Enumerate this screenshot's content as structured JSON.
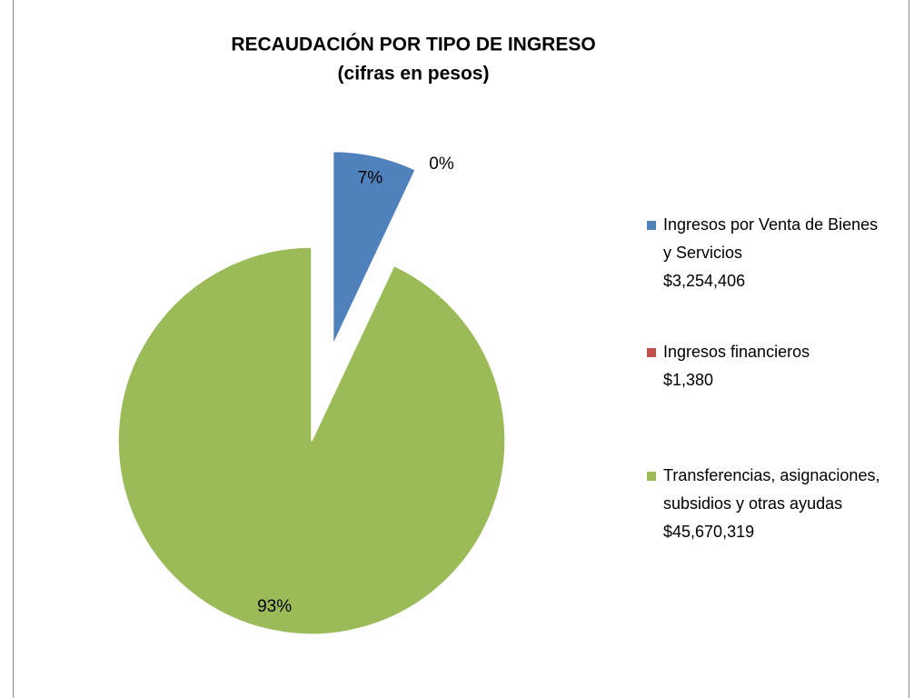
{
  "chart_data": {
    "type": "pie",
    "title": "RECAUDACIÓN POR TIPO DE INGRESO",
    "subtitle": "(cifras en pesos)",
    "categories": [
      "Ingresos por Venta de Bienes y Servicios",
      "Ingresos financieros",
      "Transferencias, asignaciones, subsidios y otras ayudas"
    ],
    "legend_amounts": [
      "$3,254,406",
      "$1,380",
      "$45,670,319"
    ],
    "values": [
      7,
      0,
      93
    ],
    "value_labels": [
      "7%",
      "0%",
      "93%"
    ],
    "colors": [
      "#4f81bd",
      "#c0504d",
      "#9bbb59"
    ],
    "exploded": [
      true,
      true,
      false
    ],
    "legend": "right"
  }
}
